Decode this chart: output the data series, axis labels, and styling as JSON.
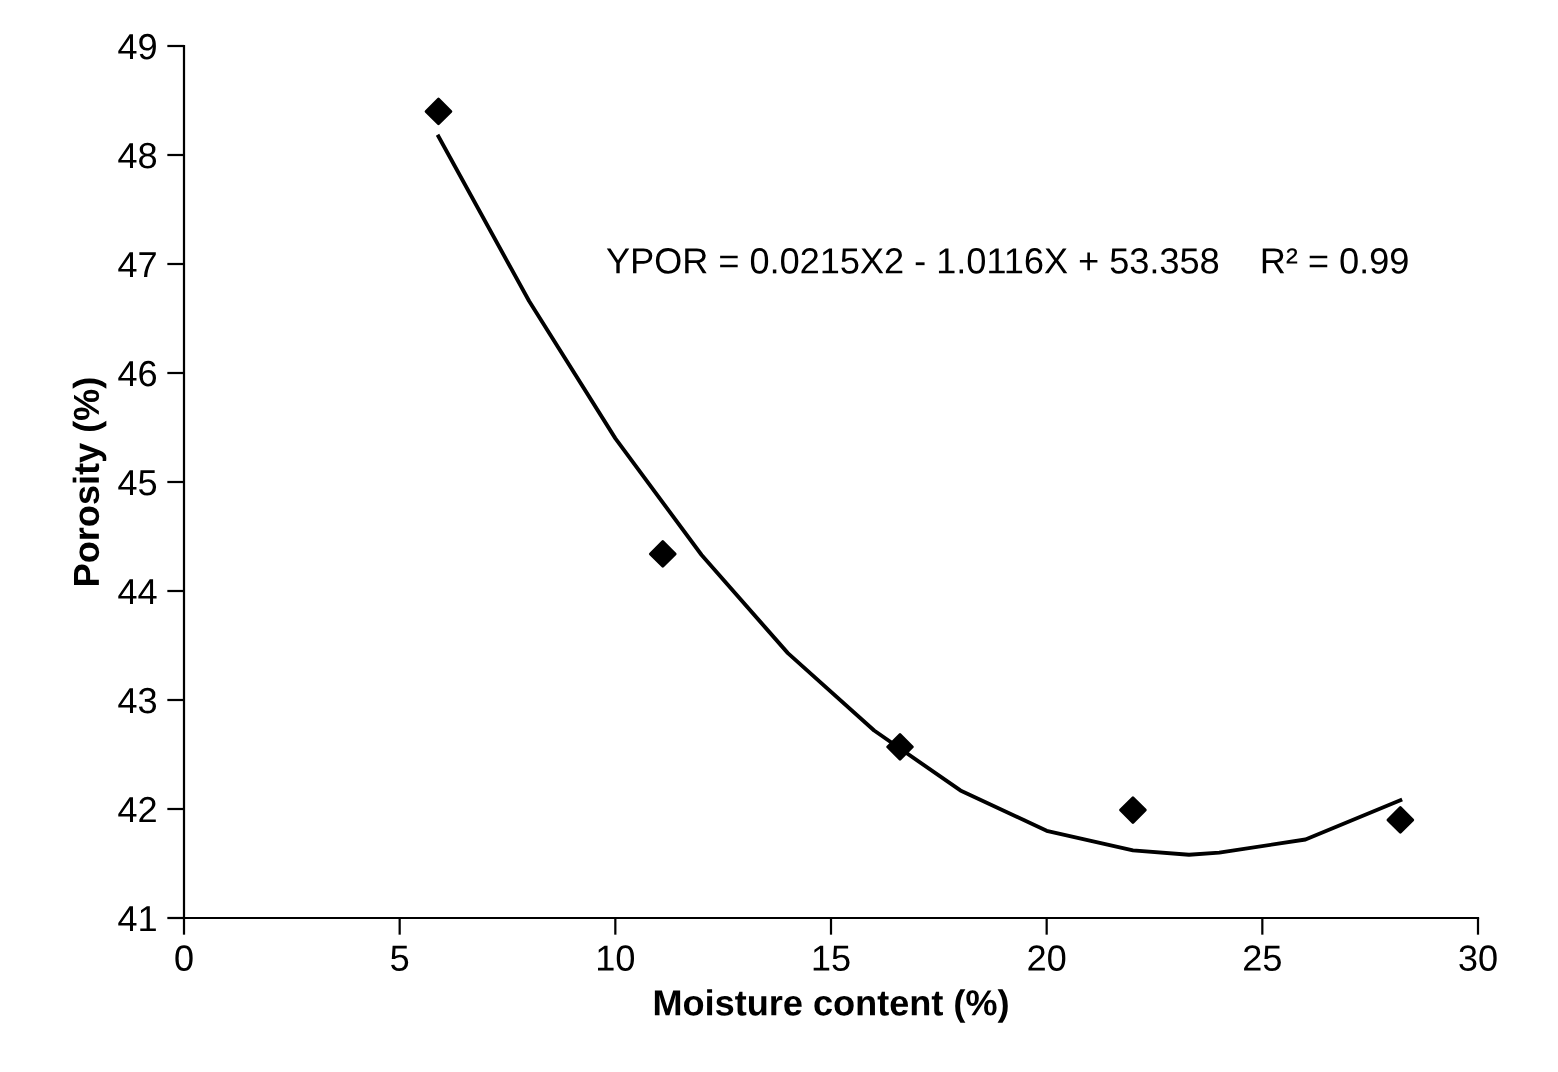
{
  "chart_data": {
    "type": "scatter",
    "xlabel": "Moisture content (%)",
    "ylabel": "Porosity (%)",
    "xlim": [
      0,
      30
    ],
    "xticks": [
      0,
      5,
      10,
      15,
      20,
      25,
      30
    ],
    "ylim": [
      41,
      49
    ],
    "yticks": [
      41,
      42,
      43,
      44,
      45,
      46,
      47,
      48,
      49
    ],
    "grid": false,
    "legend": false,
    "annotations": [
      "YPOR = 0.0215X2 - 1.0116X + 53.358    R² = 0.99"
    ],
    "series": [
      {
        "color": "#000000",
        "marker": "diamond",
        "x": [
          5.9,
          11.1,
          16.6,
          22.0,
          28.2
        ],
        "values": [
          48.4,
          44.34,
          42.57,
          41.99,
          41.9
        ]
      },
      {
        "type": "line",
        "color": "#000000",
        "marker": "none",
        "line_style": "solid",
        "x": [
          5.9,
          8,
          10,
          12,
          14,
          16,
          18,
          20,
          22,
          23.3,
          24,
          26,
          28.2
        ],
        "values": [
          48.17,
          46.66,
          45.4,
          44.33,
          43.43,
          42.72,
          42.17,
          41.8,
          41.62,
          41.58,
          41.6,
          41.72,
          42.08
        ]
      }
    ]
  }
}
